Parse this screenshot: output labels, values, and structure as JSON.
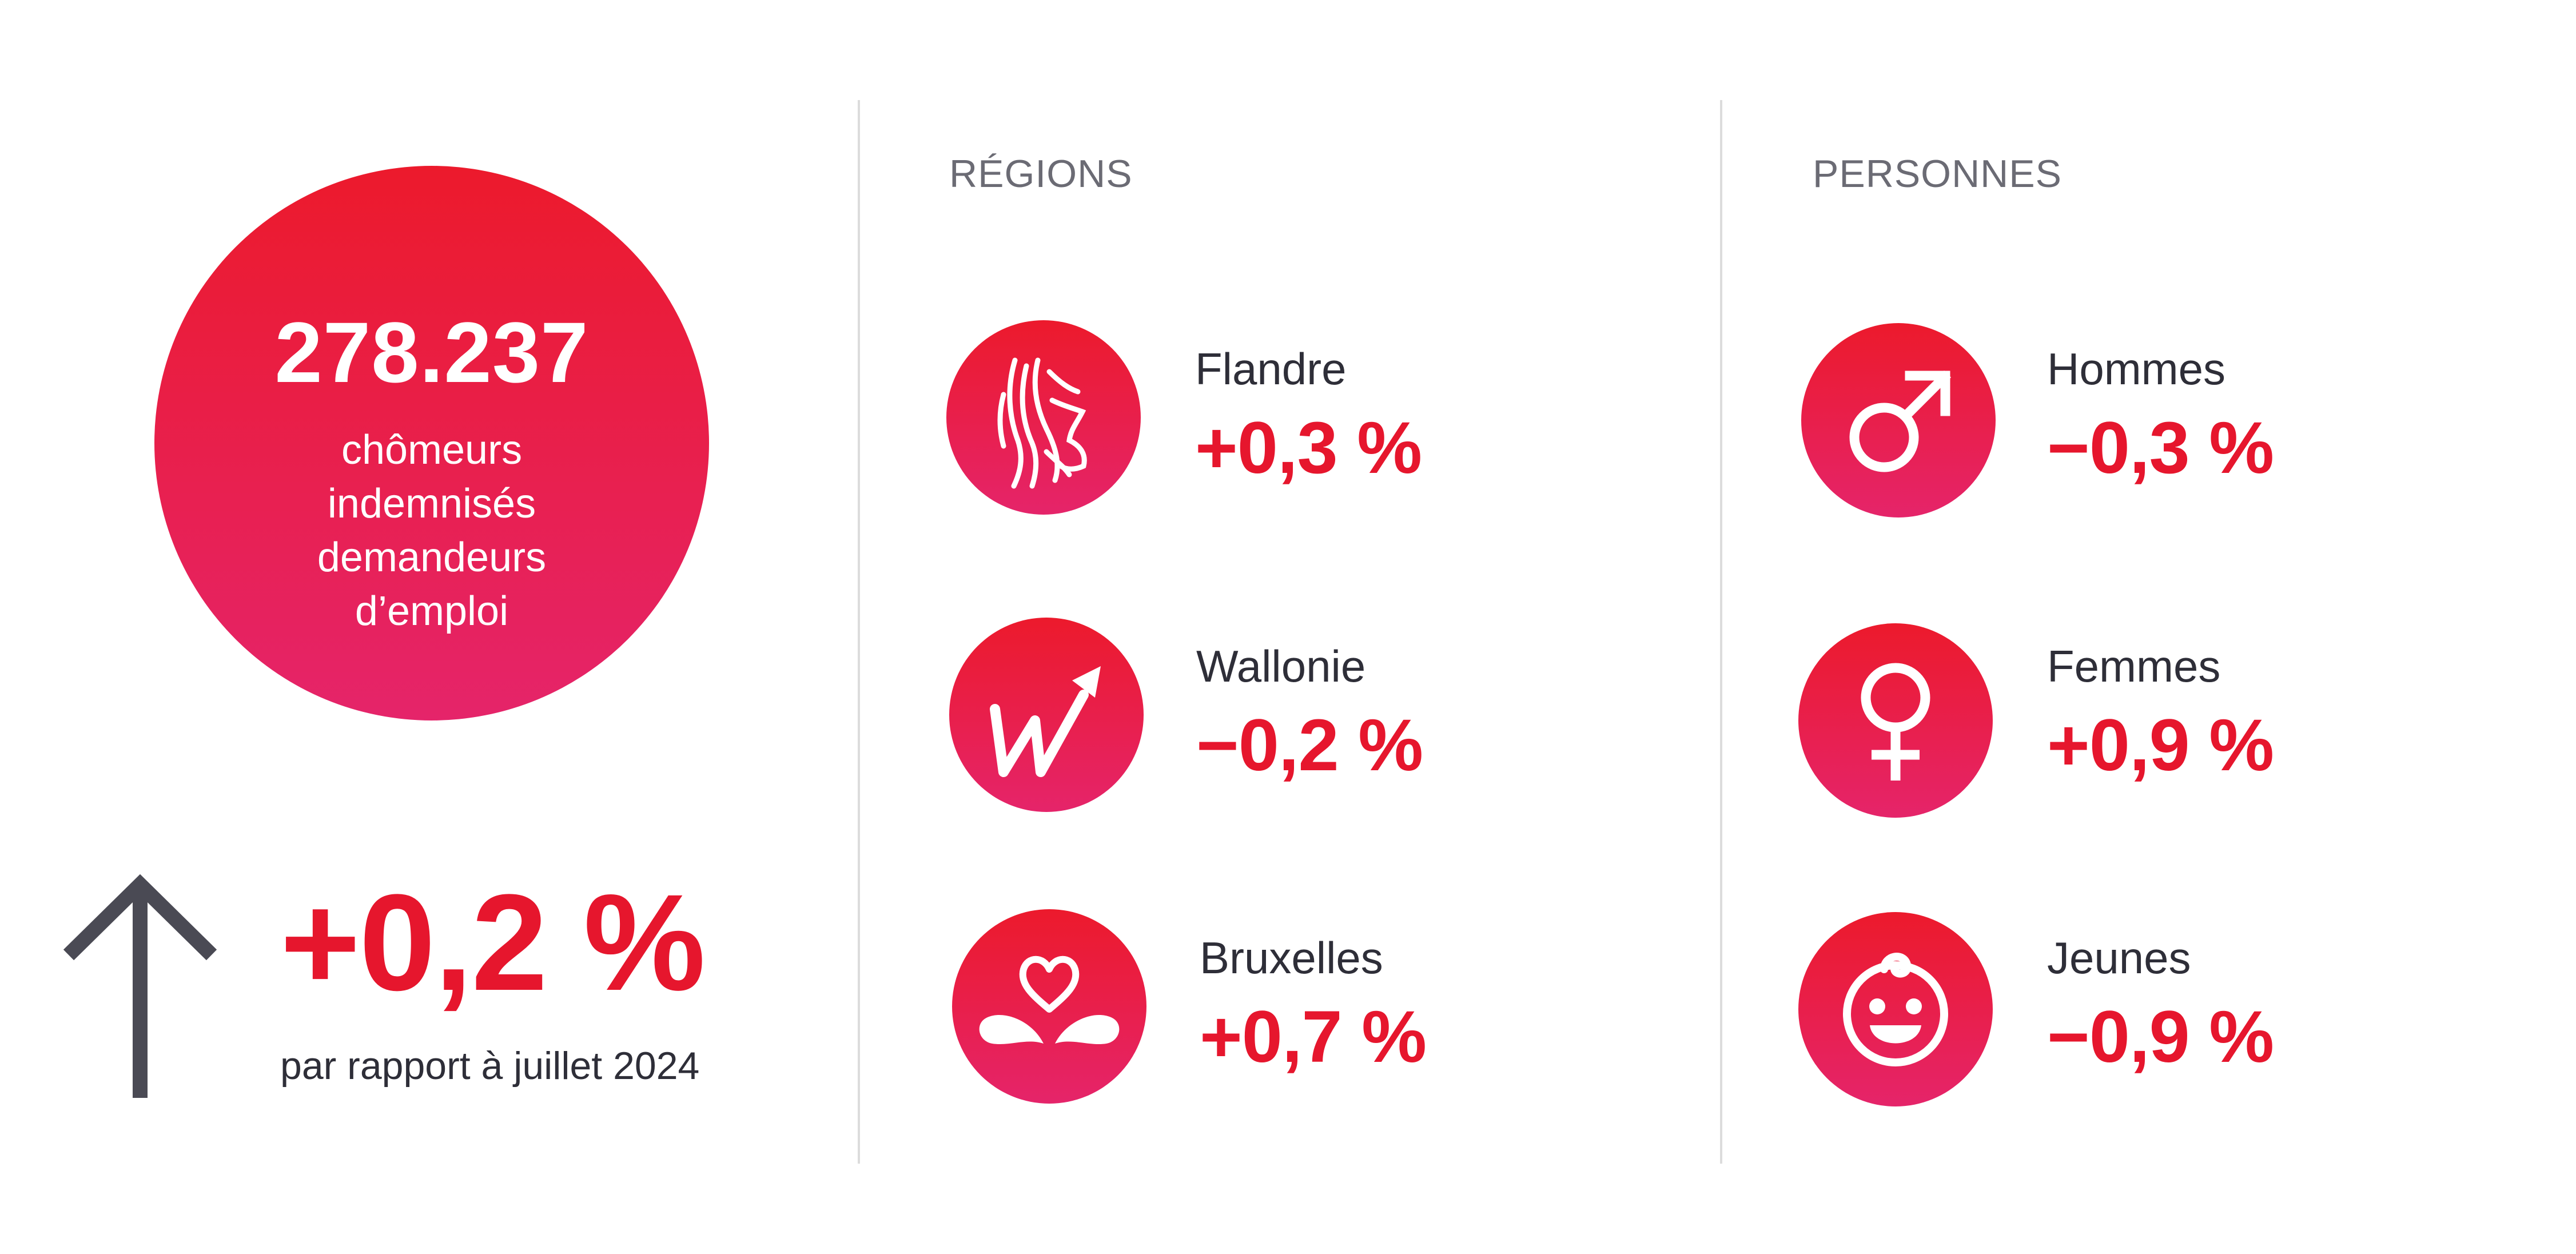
{
  "summary": {
    "total": "278.237",
    "description": "chômeurs indemnisés demandeurs d’emploi",
    "change": "+0,2 %",
    "comparison": "par rapport à juillet 2024",
    "direction_icon": "arrow-up-icon"
  },
  "regions": {
    "heading": "RÉGIONS",
    "items": [
      {
        "label": "Flandre",
        "value": "+0,3 %",
        "icon": "flemish-lion-icon"
      },
      {
        "label": "Wallonie",
        "value": "−0,2 %",
        "icon": "wallonia-w-icon"
      },
      {
        "label": "Bruxelles",
        "value": "+0,7 %",
        "icon": "brussels-iris-icon"
      }
    ]
  },
  "persons": {
    "heading": "PERSONNES",
    "items": [
      {
        "label": "Hommes",
        "value": "−0,3 %",
        "icon": "male-symbol-icon"
      },
      {
        "label": "Femmes",
        "value": "+0,9 %",
        "icon": "female-symbol-icon"
      },
      {
        "label": "Jeunes",
        "value": "−0,9 %",
        "icon": "baby-face-icon"
      }
    ]
  },
  "colors": {
    "accent_red": "#e6162d",
    "gradient_top": "#ec1a2c",
    "gradient_bottom": "#e5246a",
    "text_dark": "#2e2e38",
    "heading_gray": "#6b6b74",
    "divider": "#dcdcdc"
  }
}
